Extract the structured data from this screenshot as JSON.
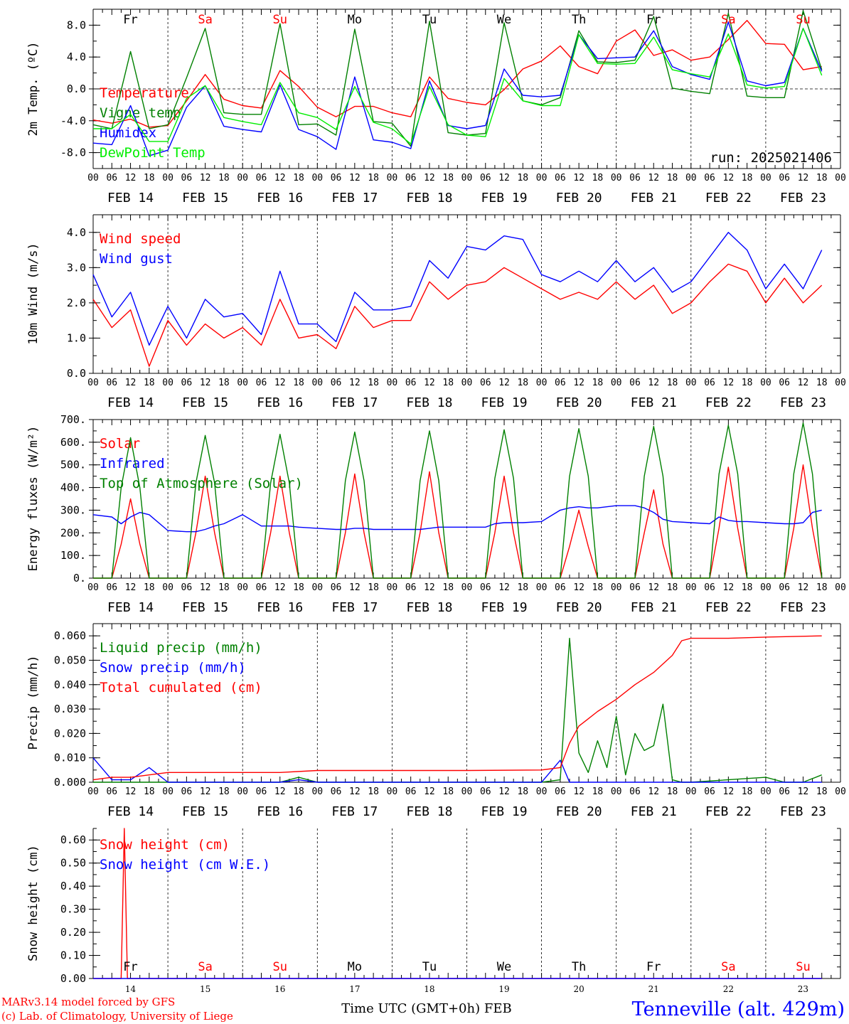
{
  "colors": {
    "red": "#ff0000",
    "blue": "#0000ff",
    "dark_green": "#008000",
    "light_green": "#00ee00",
    "black": "#000000"
  },
  "x_axis": {
    "hour_labels": [
      "00",
      "06",
      "12",
      "18"
    ],
    "final_hour_label": "00",
    "dates": [
      "FEB 14",
      "FEB 15",
      "FEB 16",
      "FEB 17",
      "FEB 18",
      "FEB 19",
      "FEB 20",
      "FEB 21",
      "FEB 22",
      "FEB 23"
    ],
    "weekdays": [
      "Fr",
      "Sa",
      "Su",
      "Mo",
      "Tu",
      "We",
      "Th",
      "Fr",
      "Sa",
      "Su"
    ],
    "weekday_colors": [
      "#000000",
      "#ff0000",
      "#ff0000",
      "#000000",
      "#000000",
      "#000000",
      "#000000",
      "#000000",
      "#ff0000",
      "#ff0000"
    ],
    "day_numbers": [
      "14",
      "15",
      "16",
      "17",
      "18",
      "19",
      "20",
      "21",
      "22",
      "23"
    ]
  },
  "run_label": "run: 2025021406",
  "footer": {
    "model": "MARv3.14 model forced by GFS",
    "copyright": "(c) Lab. of Climatology, University of Liege",
    "time_axis": "Time UTC (GMT+0h) FEB",
    "station": "Tenneville (alt. 429m)"
  },
  "chart_data": [
    {
      "type": "line",
      "ylabel": "2m Temp. (ºC)",
      "ylim": [
        -10,
        10
      ],
      "yticks": [
        -8,
        -4,
        0,
        4,
        8
      ],
      "ytick_labels": [
        "-8.0",
        "-4.0",
        "0.0",
        "4.0",
        "8.0"
      ],
      "zero_line": true,
      "show_weekdays": true,
      "x_hours": [
        0,
        6,
        12,
        18,
        24,
        30,
        36,
        42,
        48,
        54,
        60,
        66,
        72,
        78,
        84,
        90,
        96,
        102,
        108,
        114,
        120,
        126,
        132,
        138,
        144,
        150,
        156,
        162,
        168,
        174,
        180,
        186,
        192,
        198,
        204,
        210,
        216,
        222,
        228,
        234
      ],
      "series": [
        {
          "name": "Temperature",
          "color": "#ff0000",
          "values": [
            -3.9,
            -4.3,
            -3.8,
            -4.8,
            -4.6,
            -1.5,
            1.8,
            -1.3,
            -2.1,
            -2.4,
            2.3,
            0.3,
            -2.3,
            -3.5,
            -2.2,
            -2.2,
            -3.0,
            -3.5,
            1.5,
            -1.2,
            -1.7,
            -2.0,
            -0.1,
            2.5,
            3.5,
            5.4,
            2.8,
            1.9,
            6.0,
            7.4,
            4.2,
            4.9,
            3.6,
            4.0,
            6.2,
            8.6,
            5.7,
            5.6,
            2.4,
            2.8
          ]
        },
        {
          "name": "Vigne temp",
          "color": "#008000",
          "values": [
            -4.5,
            -5.0,
            4.7,
            -5.0,
            -4.5,
            1.4,
            7.6,
            -3.0,
            -3.2,
            -3.2,
            8.2,
            -4.5,
            -4.4,
            -5.8,
            7.5,
            -4.1,
            -4.3,
            -7.2,
            8.5,
            -5.5,
            -5.8,
            -5.6,
            8.3,
            -1.5,
            -2.0,
            -1.1,
            7.3,
            3.4,
            3.3,
            3.6,
            9.1,
            0.1,
            -0.3,
            -0.6,
            9.5,
            -0.9,
            -1.1,
            -1.1,
            9.8,
            2.4
          ]
        },
        {
          "name": "Humidex",
          "color": "#0000ff",
          "values": [
            -6.8,
            -7.0,
            -2.1,
            -8.4,
            -7.7,
            -2.3,
            0.4,
            -4.7,
            -5.1,
            -5.4,
            0.5,
            -5.1,
            -6.0,
            -7.6,
            1.5,
            -6.4,
            -6.7,
            -7.5,
            1.0,
            -4.6,
            -5.0,
            -4.6,
            2.5,
            -0.8,
            -1.0,
            -0.8,
            6.8,
            3.8,
            3.9,
            4.0,
            7.3,
            2.8,
            1.8,
            1.2,
            8.4,
            1.0,
            0.4,
            0.8,
            7.6,
            2.2
          ]
        },
        {
          "name": "DewPoint Temp",
          "color": "#00ee00",
          "values": [
            -5.0,
            -5.0,
            -3.2,
            -6.6,
            -6.6,
            -1.2,
            0.4,
            -3.6,
            -4.1,
            -4.5,
            0.8,
            -3.0,
            -3.6,
            -5.1,
            0.3,
            -4.2,
            -5.0,
            -6.9,
            0.3,
            -4.5,
            -5.8,
            -6.0,
            1.3,
            -1.5,
            -2.1,
            -2.1,
            6.8,
            3.2,
            3.1,
            3.2,
            6.5,
            2.4,
            1.9,
            1.5,
            6.9,
            0.5,
            0.1,
            0.3,
            7.6,
            1.7
          ]
        }
      ]
    },
    {
      "type": "line",
      "ylabel": "10m Wind (m/s)",
      "ylim": [
        0,
        4.5
      ],
      "yticks": [
        0,
        1,
        2,
        3,
        4
      ],
      "ytick_labels": [
        "0.0",
        "1.0",
        "2.0",
        "3.0",
        "4.0"
      ],
      "zero_line": false,
      "show_weekdays": false,
      "x_hours": [
        0,
        6,
        12,
        18,
        24,
        30,
        36,
        42,
        48,
        54,
        60,
        66,
        72,
        78,
        84,
        90,
        96,
        102,
        108,
        114,
        120,
        126,
        132,
        138,
        144,
        150,
        156,
        162,
        168,
        174,
        180,
        186,
        192,
        198,
        204,
        210,
        216,
        222,
        228,
        234
      ],
      "series": [
        {
          "name": "Wind speed",
          "color": "#ff0000",
          "values": [
            2.1,
            1.3,
            1.8,
            0.2,
            1.5,
            0.8,
            1.4,
            1.0,
            1.3,
            0.8,
            2.1,
            1.0,
            1.1,
            0.7,
            1.9,
            1.3,
            1.5,
            1.5,
            2.6,
            2.1,
            2.5,
            2.6,
            3.0,
            2.7,
            2.4,
            2.1,
            2.3,
            2.1,
            2.6,
            2.1,
            2.5,
            1.7,
            2.0,
            2.6,
            3.1,
            2.9,
            2.0,
            2.7,
            2.0,
            2.5
          ]
        },
        {
          "name": "Wind gust",
          "color": "#0000ff",
          "values": [
            2.8,
            1.6,
            2.3,
            0.8,
            1.9,
            1.0,
            2.1,
            1.6,
            1.7,
            1.1,
            2.9,
            1.4,
            1.4,
            0.9,
            2.3,
            1.8,
            1.8,
            1.9,
            3.2,
            2.7,
            3.6,
            3.5,
            3.9,
            3.8,
            2.8,
            2.6,
            2.9,
            2.6,
            3.2,
            2.6,
            3.0,
            2.3,
            2.6,
            3.3,
            4.0,
            3.5,
            2.4,
            3.1,
            2.4,
            3.5
          ]
        }
      ]
    },
    {
      "type": "line",
      "ylabel": "Energy fluxes (W/m²)",
      "ylim": [
        0,
        700
      ],
      "yticks": [
        0,
        100,
        200,
        300,
        400,
        500,
        600,
        700
      ],
      "ytick_labels": [
        "0.",
        "100.",
        "200.",
        "300.",
        "400.",
        "500.",
        "600.",
        "700."
      ],
      "zero_line": false,
      "show_weekdays": false,
      "x_hours": [
        0,
        6,
        9,
        12,
        15,
        18,
        24,
        30,
        33,
        36,
        39,
        42,
        48,
        54,
        57,
        60,
        63,
        66,
        72,
        78,
        81,
        84,
        87,
        90,
        96,
        102,
        105,
        108,
        111,
        114,
        120,
        126,
        129,
        132,
        135,
        138,
        144,
        150,
        153,
        156,
        159,
        162,
        168,
        174,
        177,
        180,
        183,
        186,
        192,
        198,
        201,
        204,
        207,
        210,
        216,
        222,
        225,
        228,
        231,
        234
      ],
      "series": [
        {
          "name": "Solar",
          "color": "#ff0000",
          "values": [
            0,
            0,
            150,
            350,
            150,
            0,
            0,
            0,
            200,
            450,
            200,
            0,
            0,
            0,
            200,
            450,
            200,
            0,
            0,
            0,
            200,
            460,
            200,
            0,
            0,
            0,
            200,
            470,
            200,
            0,
            0,
            0,
            200,
            450,
            200,
            0,
            0,
            0,
            140,
            300,
            140,
            0,
            0,
            0,
            200,
            390,
            150,
            0,
            0,
            0,
            220,
            490,
            220,
            0,
            0,
            0,
            220,
            500,
            220,
            0
          ]
        },
        {
          "name": "Infrared",
          "color": "#0000ff",
          "values": [
            280,
            270,
            240,
            270,
            290,
            280,
            210,
            205,
            205,
            215,
            230,
            240,
            280,
            230,
            230,
            230,
            230,
            225,
            220,
            215,
            215,
            220,
            220,
            215,
            215,
            215,
            215,
            220,
            225,
            225,
            225,
            225,
            240,
            245,
            245,
            245,
            250,
            300,
            310,
            315,
            310,
            310,
            320,
            320,
            310,
            290,
            260,
            250,
            245,
            240,
            270,
            255,
            250,
            250,
            245,
            240,
            240,
            245,
            290,
            300
          ]
        },
        {
          "name": "Top of Atmosphere (Solar)",
          "color": "#008000",
          "values": [
            0,
            0,
            400,
            620,
            400,
            0,
            0,
            0,
            420,
            630,
            420,
            0,
            0,
            0,
            420,
            635,
            420,
            0,
            0,
            0,
            430,
            645,
            430,
            0,
            0,
            0,
            430,
            650,
            430,
            0,
            0,
            0,
            440,
            655,
            440,
            0,
            0,
            0,
            450,
            660,
            450,
            0,
            0,
            0,
            450,
            670,
            450,
            0,
            0,
            0,
            460,
            675,
            460,
            0,
            0,
            0,
            460,
            685,
            460,
            0
          ]
        }
      ]
    },
    {
      "type": "line",
      "ylabel": "Precip (mm/h)",
      "ylim": [
        0,
        0.065
      ],
      "yticks": [
        0,
        0.01,
        0.02,
        0.03,
        0.04,
        0.05,
        0.06
      ],
      "ytick_labels": [
        "0.000",
        "0.010",
        "0.020",
        "0.030",
        "0.040",
        "0.050",
        "0.060"
      ],
      "zero_line": false,
      "show_weekdays": false,
      "series": [
        {
          "name": "Liquid precip (mm/h)",
          "color": "#008000",
          "x_hours": [
            0,
            6,
            12,
            18,
            24,
            60,
            66,
            72,
            144,
            150,
            153,
            156,
            159,
            162,
            165,
            168,
            171,
            174,
            177,
            180,
            183,
            186,
            189,
            192,
            216,
            222,
            228,
            234
          ],
          "values": [
            0,
            0,
            0,
            0,
            0,
            0,
            0.002,
            0,
            0,
            0.001,
            0.059,
            0.012,
            0.004,
            0.017,
            0.006,
            0.027,
            0.003,
            0.02,
            0.013,
            0.015,
            0.032,
            0.001,
            0,
            0,
            0.002,
            0,
            0,
            0.003
          ]
        },
        {
          "name": "Snow precip (mm/h)",
          "color": "#0000ff",
          "x_hours": [
            0,
            6,
            12,
            18,
            24,
            60,
            66,
            72,
            144,
            150,
            153,
            156,
            234
          ],
          "values": [
            0.01,
            0.001,
            0.001,
            0.006,
            0,
            0,
            0.001,
            0,
            0,
            0.009,
            0,
            0,
            0
          ]
        },
        {
          "name": "Total cumulated (cm)",
          "color": "#ff0000",
          "x_hours": [
            0,
            6,
            12,
            18,
            24,
            60,
            72,
            96,
            120,
            144,
            150,
            153,
            156,
            159,
            162,
            168,
            174,
            180,
            186,
            189,
            192,
            204,
            216,
            234
          ],
          "values": [
            0.001,
            0.002,
            0.002,
            0.003,
            0.004,
            0.004,
            0.0048,
            0.0048,
            0.0048,
            0.005,
            0.006,
            0.016,
            0.023,
            0.026,
            0.029,
            0.034,
            0.04,
            0.045,
            0.052,
            0.058,
            0.059,
            0.059,
            0.0595,
            0.06
          ]
        }
      ]
    },
    {
      "type": "line",
      "ylabel": "Snow height (cm)",
      "ylim": [
        0,
        0.65
      ],
      "yticks": [
        0,
        0.1,
        0.2,
        0.3,
        0.4,
        0.5,
        0.6
      ],
      "ytick_labels": [
        "0.00",
        "0.10",
        "0.20",
        "0.30",
        "0.40",
        "0.50",
        "0.60"
      ],
      "zero_line": false,
      "show_weekdays": true,
      "bottom_panel": true,
      "series": [
        {
          "name": "Snow height (cm)",
          "color": "#ff0000",
          "x_hours": [
            0,
            9,
            10,
            11,
            12,
            234
          ],
          "values": [
            0,
            0,
            0.65,
            0,
            0,
            0
          ]
        },
        {
          "name": "Snow height (cm W.E.)",
          "color": "#0000ff",
          "x_hours": [
            0,
            234
          ],
          "values": [
            0,
            0
          ]
        }
      ]
    }
  ]
}
